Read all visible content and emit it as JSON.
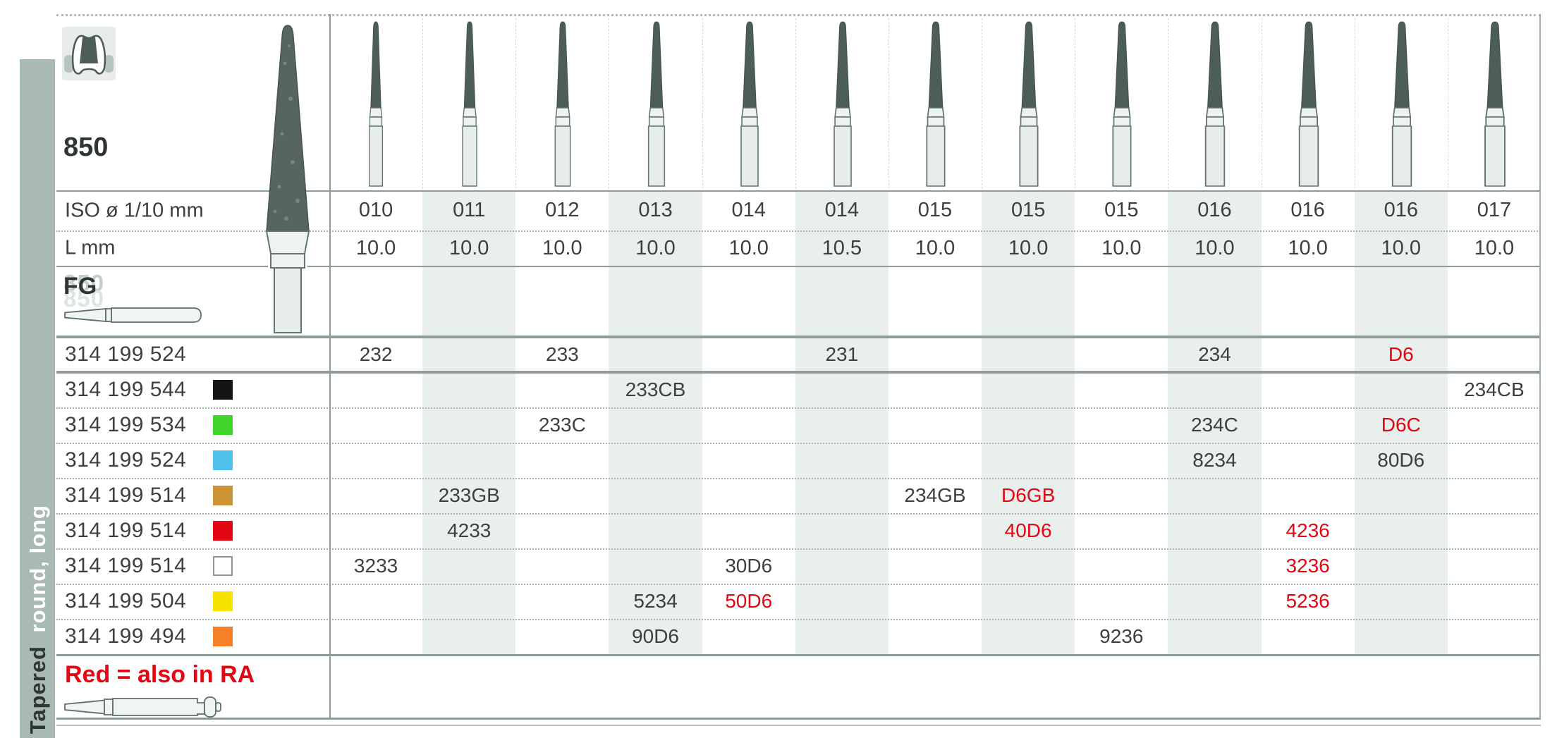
{
  "sidebar": {
    "section_label": "Tapered",
    "subsection_label": "round, long"
  },
  "product": {
    "number": "850",
    "icon": "molar-with-tapered-prep-icon"
  },
  "header": {
    "iso_row_label": "ISO ø 1/10 mm",
    "length_row_label": "L mm",
    "shank_code": "FG",
    "shank_ghost_code": "850",
    "columns": [
      {
        "iso": "010",
        "length": "10.0"
      },
      {
        "iso": "011",
        "length": "10.0"
      },
      {
        "iso": "012",
        "length": "10.0"
      },
      {
        "iso": "013",
        "length": "10.0"
      },
      {
        "iso": "014",
        "length": "10.0"
      },
      {
        "iso": "014",
        "length": "10.5"
      },
      {
        "iso": "015",
        "length": "10.0"
      },
      {
        "iso": "015",
        "length": "10.0"
      },
      {
        "iso": "015",
        "length": "10.0"
      },
      {
        "iso": "016",
        "length": "10.0"
      },
      {
        "iso": "016",
        "length": "10.0"
      },
      {
        "iso": "016",
        "length": "10.0"
      },
      {
        "iso": "017",
        "length": "10.0"
      }
    ]
  },
  "rows": [
    {
      "order_number": "314 199 524",
      "chip": null,
      "values": [
        {
          "col": 1,
          "text": "232",
          "red": false
        },
        {
          "col": 3,
          "text": "233",
          "red": false
        },
        {
          "col": 6,
          "text": "231",
          "red": false
        },
        {
          "col": 10,
          "text": "234",
          "red": false
        },
        {
          "col": 12,
          "text": "D6",
          "red": true
        }
      ]
    },
    {
      "order_number": "314 199 544",
      "chip": "black",
      "values": [
        {
          "col": 4,
          "text": "233CB",
          "red": false
        },
        {
          "col": 13,
          "text": "234CB",
          "red": false
        }
      ]
    },
    {
      "order_number": "314 199 534",
      "chip": "green",
      "values": [
        {
          "col": 3,
          "text": "233C",
          "red": false
        },
        {
          "col": 10,
          "text": "234C",
          "red": false
        },
        {
          "col": 12,
          "text": "D6C",
          "red": true
        }
      ]
    },
    {
      "order_number": "314 199 524",
      "chip": "blue",
      "values": [
        {
          "col": 10,
          "text": "8234",
          "red": false
        },
        {
          "col": 12,
          "text": "80D6",
          "red": false
        }
      ]
    },
    {
      "order_number": "314 199 514",
      "chip": "gold",
      "values": [
        {
          "col": 2,
          "text": "233GB",
          "red": false
        },
        {
          "col": 7,
          "text": "234GB",
          "red": false
        },
        {
          "col": 8,
          "text": "D6GB",
          "red": true
        }
      ]
    },
    {
      "order_number": "314 199 514",
      "chip": "red",
      "values": [
        {
          "col": 2,
          "text": "4233",
          "red": false
        },
        {
          "col": 8,
          "text": "40D6",
          "red": true
        },
        {
          "col": 11,
          "text": "4236",
          "red": true
        }
      ]
    },
    {
      "order_number": "314 199 514",
      "chip": "white",
      "values": [
        {
          "col": 1,
          "text": "3233",
          "red": false
        },
        {
          "col": 5,
          "text": "30D6",
          "red": false
        },
        {
          "col": 11,
          "text": "3236",
          "red": true
        }
      ]
    },
    {
      "order_number": "314 199 504",
      "chip": "yellow",
      "values": [
        {
          "col": 4,
          "text": "5234",
          "red": false
        },
        {
          "col": 5,
          "text": "50D6",
          "red": true
        },
        {
          "col": 11,
          "text": "5236",
          "red": true
        }
      ]
    },
    {
      "order_number": "314 199 494",
      "chip": "orange",
      "values": [
        {
          "col": 4,
          "text": "90D6",
          "red": false
        },
        {
          "col": 9,
          "text": "9236",
          "red": false
        }
      ]
    }
  ],
  "footer": {
    "note": "Red = also in RA",
    "shank_icon": "ra-shank-bur-outline"
  },
  "colors": {
    "accent_red": "#e30613",
    "text": "#3b4140",
    "stripe": "#e9efec",
    "grid_solid": "#8d9c99",
    "grid_dotted": "#a6b1ae",
    "strip_bg": "#a9bab6",
    "bur_dark": "#4d5e59",
    "bur_dark_edge": "#41514c",
    "bur_light": "#e7edeb",
    "bur_light2": "#eef3f1",
    "bur_edge": "#64756f",
    "chips": {
      "black": "#141414",
      "green": "#3fd52a",
      "blue": "#4fc2ec",
      "gold": "#cd9434",
      "red": "#e30613",
      "white": "#ffffff",
      "yellow": "#f6e300",
      "orange": "#f58025"
    }
  }
}
